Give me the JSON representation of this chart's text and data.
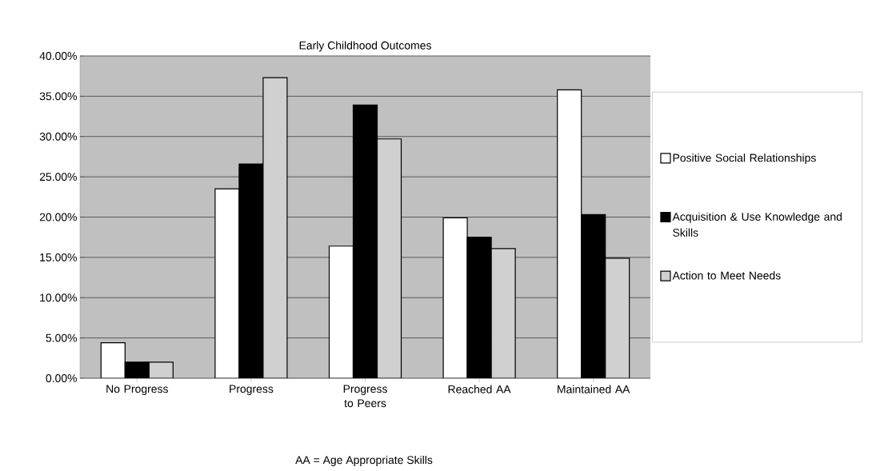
{
  "chart_data": {
    "type": "bar",
    "title": "Early Childhood Outcomes",
    "categories": [
      "No Progress",
      "Progress",
      "Progress to Peers",
      "Reached AA",
      "Maintained AA"
    ],
    "series": [
      {
        "name": "Positive Social Relationships",
        "color": "#ffffff",
        "values": [
          4.4,
          23.5,
          16.4,
          19.9,
          35.8
        ]
      },
      {
        "name": "Acquisition & Use Knowledge and Skills",
        "color": "#000000",
        "values": [
          2.0,
          26.6,
          33.9,
          17.5,
          20.3
        ]
      },
      {
        "name": "Action to Meet Needs",
        "color": "#d0d0d0",
        "values": [
          2.0,
          37.3,
          29.7,
          16.1,
          14.9
        ]
      }
    ],
    "ylim": [
      0,
      40
    ],
    "yticks": [
      {
        "value": 0,
        "label": "0.00%"
      },
      {
        "value": 5,
        "label": "5.00%"
      },
      {
        "value": 10,
        "label": "10.00%"
      },
      {
        "value": 15,
        "label": "15.00%"
      },
      {
        "value": 20,
        "label": "20.00%"
      },
      {
        "value": 25,
        "label": "25.00%"
      },
      {
        "value": 30,
        "label": "30.00%"
      },
      {
        "value": 35,
        "label": "35.00%"
      },
      {
        "value": 40,
        "label": "40.00%"
      }
    ],
    "grid": "y",
    "legend": "right",
    "annotations": [
      "AA = Age Appropriate Skills"
    ]
  }
}
